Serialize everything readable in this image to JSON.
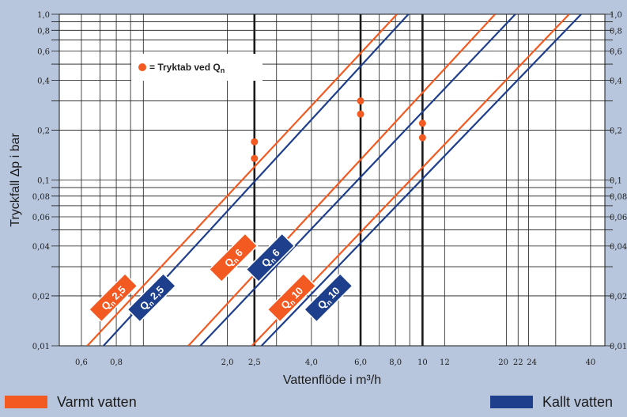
{
  "colors": {
    "warm": "#f25a22",
    "cold": "#1e3f8c",
    "background": "#b7c6dd",
    "plot_bg": "#ffffff",
    "grid": "#1a1a1a"
  },
  "legend": {
    "warm": "Varmt vatten",
    "cold": "Kallt vatten"
  },
  "annotation": {
    "text": "= Tryktab ved Q",
    "sub": "n"
  },
  "chart_data": {
    "type": "line",
    "xscale": "log",
    "yscale": "log",
    "xlabel": "Vattenflöde i m³/h",
    "ylabel": "Tryckfall Δp i bar",
    "xlim": [
      0.5,
      45
    ],
    "ylim": [
      0.01,
      1.0
    ],
    "grid": true,
    "x_ticks": [
      {
        "v": 0.6,
        "label": "0,6"
      },
      {
        "v": 0.8,
        "label": "0,8"
      },
      {
        "v": 2.0,
        "label": "2,0"
      },
      {
        "v": 2.5,
        "label": "2,5"
      },
      {
        "v": 4.0,
        "label": "4,0"
      },
      {
        "v": 6.0,
        "label": "6,0"
      },
      {
        "v": 8.0,
        "label": "8,0"
      },
      {
        "v": 10,
        "label": "10"
      },
      {
        "v": 12,
        "label": "12"
      },
      {
        "v": 20,
        "label": "20"
      },
      {
        "v": 22,
        "label": "22"
      },
      {
        "v": 24,
        "label": "24"
      },
      {
        "v": 40,
        "label": "40"
      }
    ],
    "y_ticks": [
      {
        "v": 0.01,
        "label": "0,01"
      },
      {
        "v": 0.02,
        "label": "0,02"
      },
      {
        "v": 0.04,
        "label": "0,04"
      },
      {
        "v": 0.06,
        "label": "0,06"
      },
      {
        "v": 0.08,
        "label": "0,08"
      },
      {
        "v": 0.1,
        "label": "0,1"
      },
      {
        "v": 0.2,
        "label": "0,2"
      },
      {
        "v": 0.4,
        "label": "0,4"
      },
      {
        "v": 0.6,
        "label": "0,6"
      },
      {
        "v": 0.8,
        "label": "0,8"
      },
      {
        "v": 1.0,
        "label": "1,0"
      }
    ],
    "x_grid": [
      0.6,
      0.7,
      0.8,
      0.9,
      1,
      2,
      2.5,
      3,
      4,
      5,
      6,
      7,
      8,
      9,
      10,
      12,
      20,
      22,
      24,
      30,
      40
    ],
    "y_grid": [
      0.01,
      0.02,
      0.03,
      0.04,
      0.05,
      0.06,
      0.07,
      0.08,
      0.09,
      0.1,
      0.2,
      0.3,
      0.4,
      0.5,
      0.6,
      0.7,
      0.8,
      0.9,
      1.0
    ],
    "x_bold": [
      2.5,
      6.0,
      10
    ],
    "series": [
      {
        "name": "Varmt vatten",
        "label": "Q",
        "sub": "n",
        "size": "2,5",
        "color": "warm",
        "points": [
          [
            0.63,
            0.01
          ],
          [
            8.1,
            1.0
          ]
        ],
        "marker": [
          2.5,
          0.17
        ]
      },
      {
        "name": "Kallt vatten",
        "label": "Q",
        "sub": "n",
        "size": "2,5",
        "color": "cold",
        "points": [
          [
            0.72,
            0.01
          ],
          [
            8.9,
            1.0
          ]
        ],
        "marker": [
          2.5,
          0.135
        ]
      },
      {
        "name": "Varmt vatten",
        "label": "Q",
        "sub": "n",
        "size": "6",
        "color": "warm",
        "points": [
          [
            1.45,
            0.01
          ],
          [
            18.2,
            1.0
          ]
        ],
        "marker": [
          6.0,
          0.3
        ]
      },
      {
        "name": "Kallt vatten",
        "label": "Q",
        "sub": "n",
        "size": "6",
        "color": "cold",
        "points": [
          [
            1.6,
            0.01
          ],
          [
            21.5,
            1.0
          ]
        ],
        "marker": [
          6.0,
          0.25
        ]
      },
      {
        "name": "Varmt vatten",
        "label": "Q",
        "sub": "n",
        "size": "10",
        "color": "warm",
        "points": [
          [
            2.45,
            0.01
          ],
          [
            33.5,
            1.0
          ]
        ],
        "marker": [
          10,
          0.22
        ]
      },
      {
        "name": "Kallt vatten",
        "label": "Q",
        "sub": "n",
        "size": "10",
        "color": "cold",
        "points": [
          [
            2.65,
            0.01
          ],
          [
            37.0,
            1.0
          ]
        ],
        "marker": [
          10,
          0.18
        ]
      }
    ],
    "badges": [
      {
        "text": "Q",
        "sub": "n",
        "size": "2,5",
        "color": "warm",
        "at": [
          0.78,
          0.0195
        ]
      },
      {
        "text": "Q",
        "sub": "n",
        "size": "2,5",
        "color": "cold",
        "at": [
          1.07,
          0.0195
        ]
      },
      {
        "text": "Q",
        "sub": "n",
        "size": "6",
        "color": "warm",
        "at": [
          2.1,
          0.034
        ]
      },
      {
        "text": "Q",
        "sub": "n",
        "size": "6",
        "color": "cold",
        "at": [
          2.85,
          0.034
        ]
      },
      {
        "text": "Q",
        "sub": "n",
        "size": "10",
        "color": "warm",
        "at": [
          3.4,
          0.0195
        ]
      },
      {
        "text": "Q",
        "sub": "n",
        "size": "10",
        "color": "cold",
        "at": [
          4.6,
          0.0195
        ]
      }
    ]
  }
}
